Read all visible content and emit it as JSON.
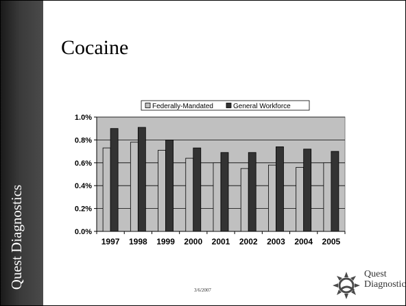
{
  "slide": {
    "title": "Cocaine",
    "sidebar_text": "Quest Diagnostics",
    "footer_date": "3/6/2007",
    "logo_line1": "Quest",
    "logo_line2": "Diagnostics"
  },
  "chart_data": {
    "type": "bar",
    "categories": [
      "1997",
      "1998",
      "1999",
      "2000",
      "2001",
      "2002",
      "2003",
      "2004",
      "2005"
    ],
    "series": [
      {
        "name": "Federally-Mandated",
        "values": [
          0.73,
          0.78,
          0.71,
          0.64,
          0.6,
          0.55,
          0.58,
          0.56,
          0.6
        ],
        "color": "#c0c0c0"
      },
      {
        "name": "General Workforce",
        "values": [
          0.9,
          0.91,
          0.8,
          0.73,
          0.69,
          0.69,
          0.74,
          0.72,
          0.7
        ],
        "color": "#333333"
      }
    ],
    "title": "",
    "xlabel": "",
    "ylabel": "",
    "ylim": [
      0,
      1.0
    ],
    "yticks": [
      "0.0%",
      "0.2%",
      "0.4%",
      "0.6%",
      "0.8%",
      "1.0%"
    ],
    "grid": true,
    "legend_position": "top",
    "plot_background": "#c0c0c0"
  }
}
